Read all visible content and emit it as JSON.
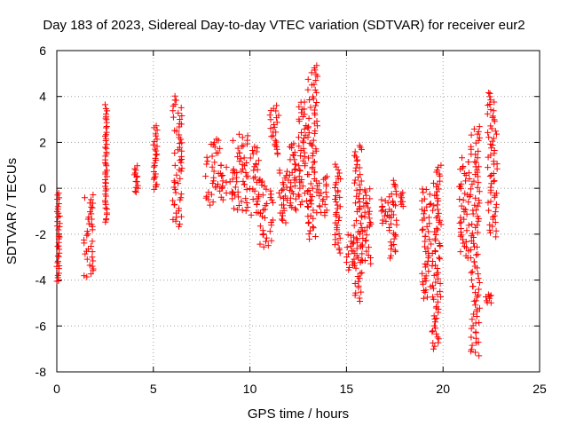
{
  "chart_data": {
    "type": "scatter",
    "title": "Day 183 of 2023, Sidereal Day-to-day VTEC variation (SDTVAR) for receiver eur2",
    "xlabel": "GPS time / hours",
    "ylabel": "SDTVAR / TECUs",
    "xlim": [
      0,
      25
    ],
    "ylim": [
      -8,
      6
    ],
    "xticks": [
      0,
      5,
      10,
      15,
      20,
      25
    ],
    "yticks": [
      -8,
      -6,
      -4,
      -2,
      0,
      2,
      4,
      6
    ],
    "grid": true,
    "marker": "+",
    "color": "#ff0000",
    "clusters": [
      {
        "x": [
          0.0,
          0.15
        ],
        "y": [
          -4.1,
          -0.2
        ]
      },
      {
        "x": [
          1.4,
          1.9
        ],
        "y": [
          -3.9,
          -0.3
        ]
      },
      {
        "x": [
          2.5,
          2.6
        ],
        "y": [
          -1.5,
          3.6
        ]
      },
      {
        "x": [
          4.0,
          4.3
        ],
        "y": [
          -0.2,
          1.0
        ]
      },
      {
        "x": [
          5.0,
          5.2
        ],
        "y": [
          -0.1,
          2.7
        ]
      },
      {
        "x": [
          6.0,
          6.5
        ],
        "y": [
          -1.7,
          4.0
        ]
      },
      {
        "x": [
          7.7,
          8.5
        ],
        "y": [
          -0.7,
          2.2
        ]
      },
      {
        "x": [
          8.5,
          9.2
        ],
        "y": [
          -0.5,
          1.0
        ]
      },
      {
        "x": [
          9.1,
          9.9
        ],
        "y": [
          -1.0,
          2.4
        ]
      },
      {
        "x": [
          9.7,
          10.5
        ],
        "y": [
          -1.2,
          1.8
        ]
      },
      {
        "x": [
          10.5,
          11.2
        ],
        "y": [
          -2.6,
          0.4
        ]
      },
      {
        "x": [
          11.0,
          11.5
        ],
        "y": [
          1.5,
          3.6
        ]
      },
      {
        "x": [
          11.5,
          12.0
        ],
        "y": [
          -1.5,
          0.8
        ]
      },
      {
        "x": [
          12.0,
          12.4
        ],
        "y": [
          -1.0,
          2.0
        ]
      },
      {
        "x": [
          12.5,
          13.0
        ],
        "y": [
          -0.8,
          3.8
        ]
      },
      {
        "x": [
          13.0,
          13.5
        ],
        "y": [
          -2.2,
          5.4
        ]
      },
      {
        "x": [
          13.5,
          14.0
        ],
        "y": [
          -1.2,
          0.5
        ]
      },
      {
        "x": [
          14.4,
          14.7
        ],
        "y": [
          -2.8,
          1.0
        ]
      },
      {
        "x": [
          15.0,
          15.4
        ],
        "y": [
          -3.5,
          -2.0
        ]
      },
      {
        "x": [
          15.4,
          15.8
        ],
        "y": [
          -4.9,
          1.9
        ]
      },
      {
        "x": [
          15.8,
          16.3
        ],
        "y": [
          -3.3,
          0.0
        ]
      },
      {
        "x": [
          16.8,
          17.2
        ],
        "y": [
          -1.5,
          -0.5
        ]
      },
      {
        "x": [
          17.2,
          17.6
        ],
        "y": [
          -3.0,
          0.3
        ]
      },
      {
        "x": [
          17.8,
          18.0
        ],
        "y": [
          -0.8,
          -0.2
        ]
      },
      {
        "x": [
          18.9,
          19.4
        ],
        "y": [
          -4.8,
          0.0
        ]
      },
      {
        "x": [
          19.4,
          19.9
        ],
        "y": [
          -7.0,
          1.0
        ]
      },
      {
        "x": [
          20.8,
          21.4
        ],
        "y": [
          -3.0,
          1.3
        ]
      },
      {
        "x": [
          21.4,
          21.9
        ],
        "y": [
          -7.3,
          2.7
        ]
      },
      {
        "x": [
          22.2,
          22.5
        ],
        "y": [
          -5.0,
          -4.6
        ]
      },
      {
        "x": [
          22.3,
          22.8
        ],
        "y": [
          -2.1,
          4.2
        ]
      }
    ]
  }
}
